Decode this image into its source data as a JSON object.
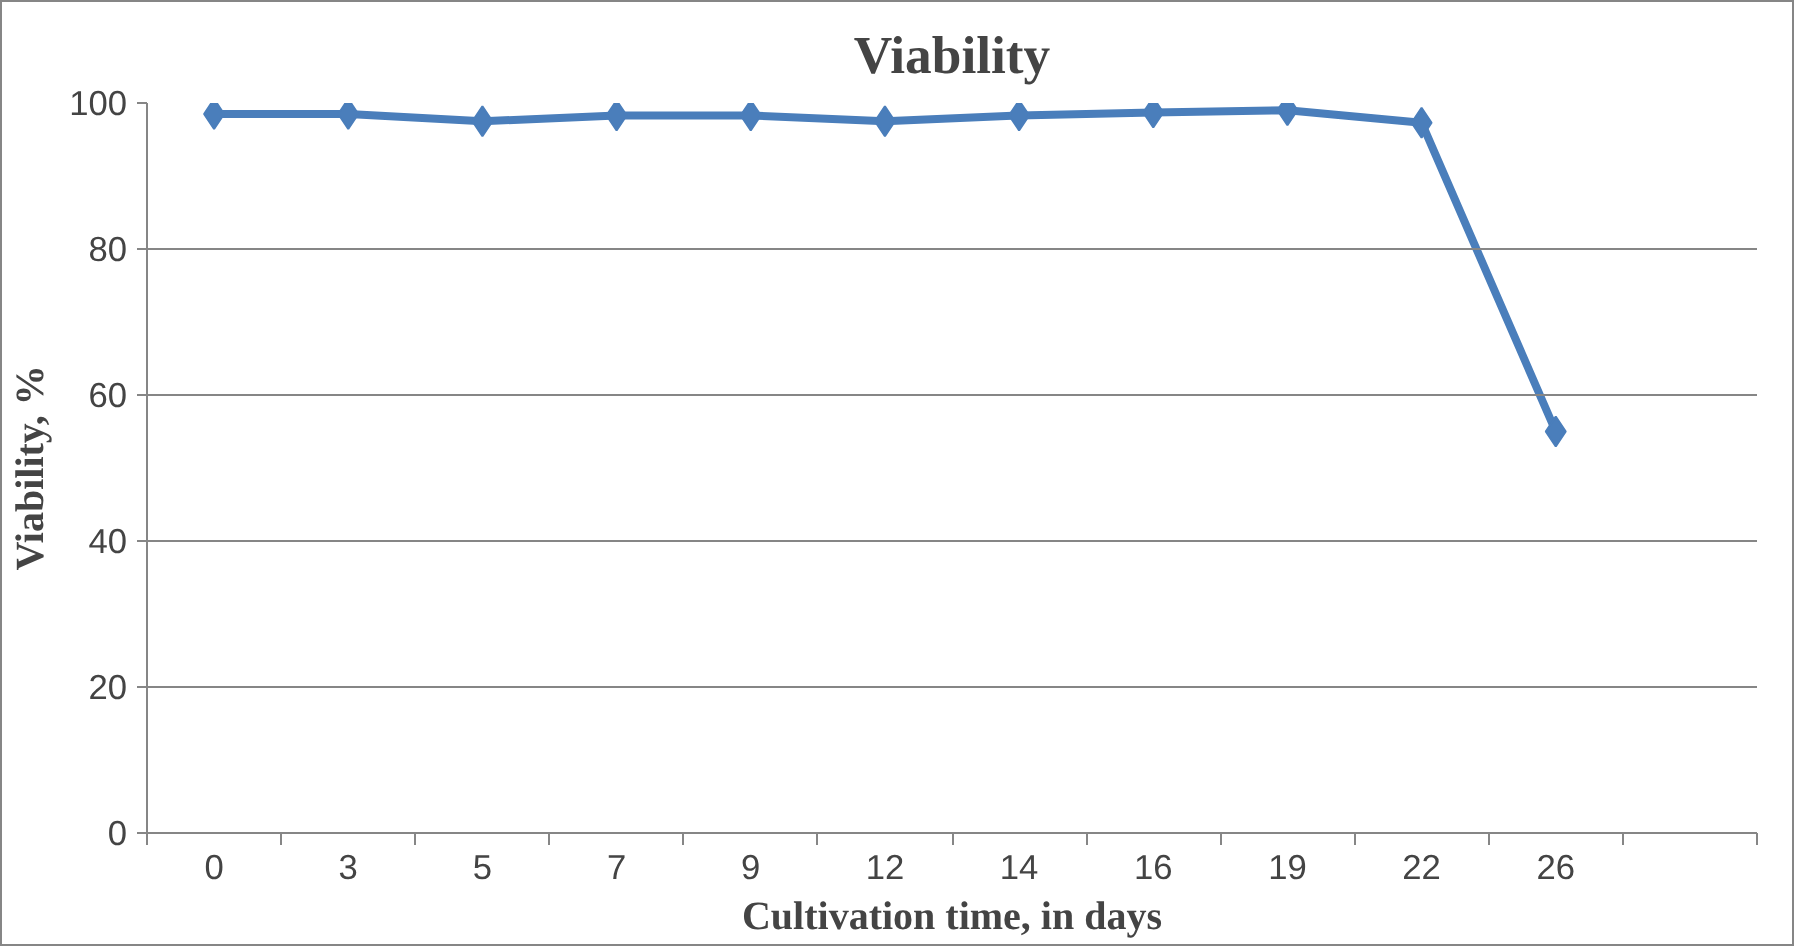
{
  "chart_data": {
    "type": "line",
    "title": "Viability",
    "xlabel": "Cultivation time, in days",
    "ylabel": "Viability, %",
    "categories": [
      "0",
      "3",
      "5",
      "7",
      "9",
      "12",
      "14",
      "16",
      "19",
      "22",
      "26",
      null
    ],
    "series": [
      {
        "color": "#4a7ebb",
        "values": [
          98.5,
          98.5,
          97.5,
          98.3,
          98.3,
          97.5,
          98.3,
          98.7,
          99,
          97.3,
          55,
          null
        ]
      }
    ],
    "ylim": [
      0,
      100
    ],
    "yticks": [
      0,
      20,
      40,
      60,
      80,
      100
    ],
    "grid": "y",
    "marker": "diamond",
    "line_style": "solid"
  }
}
